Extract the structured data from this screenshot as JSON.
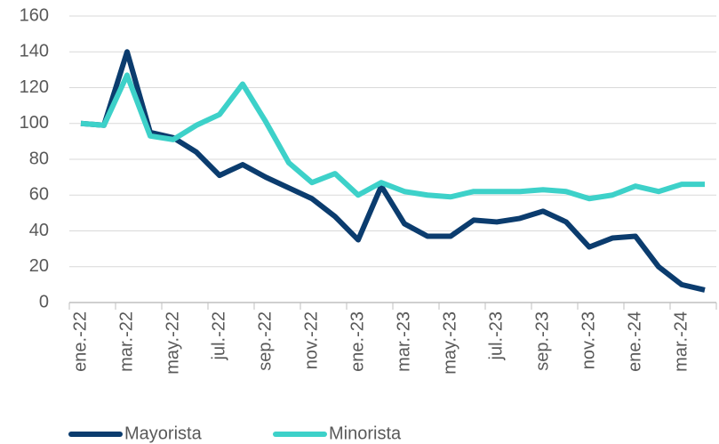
{
  "chart_data": {
    "type": "line",
    "categories": [
      "ene.-22",
      null,
      "mar.-22",
      null,
      "may.-22",
      null,
      "jul.-22",
      null,
      "sep.-22",
      null,
      "nov.-22",
      null,
      "ene.-23",
      null,
      "mar.-23",
      null,
      "may.-23",
      null,
      "jul.-23",
      null,
      "sep.-23",
      null,
      "nov.-23",
      null,
      "ene.-24",
      null,
      "mar.-24",
      null
    ],
    "series": [
      {
        "name": "Mayorista",
        "color": "#0b3c6e",
        "values": [
          100,
          99,
          140,
          95,
          92,
          84,
          71,
          77,
          70,
          64,
          58,
          48,
          35,
          65,
          44,
          37,
          37,
          46,
          45,
          47,
          51,
          45,
          31,
          36,
          37,
          20,
          10,
          7
        ]
      },
      {
        "name": "Minorista",
        "color": "#3dd1c9",
        "values": [
          100,
          99,
          127,
          93,
          91,
          99,
          105,
          122,
          101,
          78,
          67,
          72,
          60,
          67,
          62,
          60,
          59,
          62,
          62,
          62,
          63,
          62,
          58,
          60,
          65,
          62,
          66,
          66
        ]
      }
    ],
    "ylim": [
      0,
      160
    ],
    "yticks": [
      0,
      20,
      40,
      60,
      80,
      100,
      120,
      140,
      160
    ],
    "grid": true,
    "legend": "bottom"
  }
}
